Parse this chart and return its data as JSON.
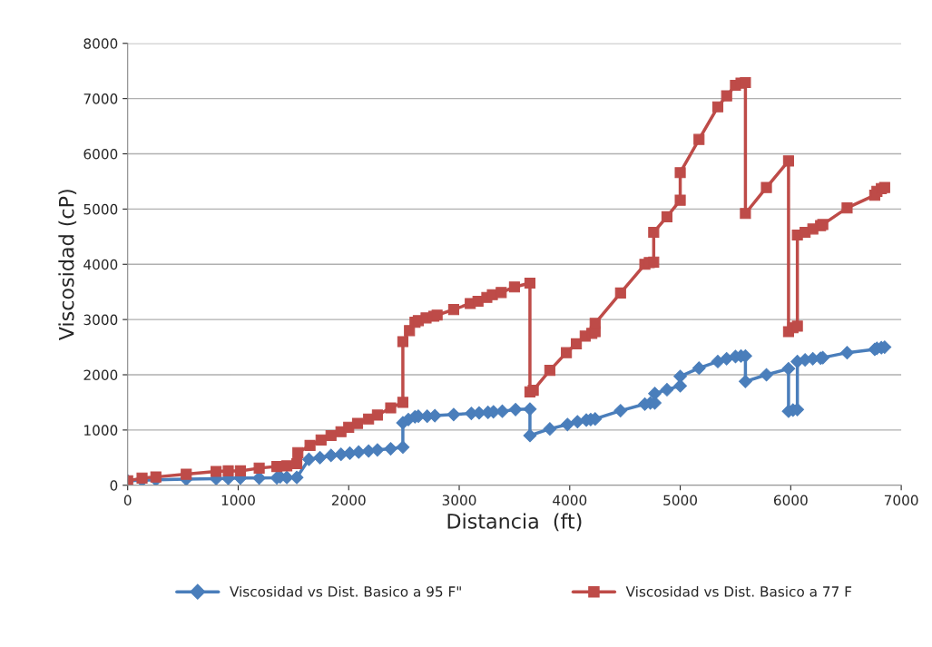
{
  "chart_data": {
    "type": "line",
    "xlabel": "Distancia  (ft)",
    "ylabel": "Viscosidad (cP)",
    "xlim": [
      0,
      7000
    ],
    "xticks": [
      0,
      1000,
      2000,
      3000,
      4000,
      5000,
      6000,
      7000
    ],
    "ylim": [
      0,
      8000
    ],
    "yticks": [
      0,
      1000,
      2000,
      3000,
      4000,
      5000,
      6000,
      7000,
      8000
    ],
    "grid": "y",
    "legend": "bottom",
    "line_style": "solid",
    "series": [
      {
        "name": "Viscosidad vs Dist. Basico a 95 F\"",
        "color": "#4a7ebb",
        "marker": "diamond",
        "x": [
          0,
          130,
          255,
          530,
          800,
          910,
          1020,
          1190,
          1350,
          1380,
          1440,
          1530,
          1640,
          1740,
          1840,
          1930,
          2010,
          2090,
          2180,
          2260,
          2380,
          2490,
          2490,
          2540,
          2600,
          2630,
          2710,
          2780,
          2950,
          3110,
          3180,
          3260,
          3310,
          3390,
          3510,
          3640,
          3640,
          3820,
          3980,
          4070,
          4150,
          4190,
          4230,
          4460,
          4680,
          4730,
          4770,
          4770,
          4880,
          5000,
          5000,
          5170,
          5340,
          5420,
          5500,
          5550,
          5590,
          5590,
          5780,
          5980,
          5980,
          6020,
          6060,
          6060,
          6130,
          6200,
          6270,
          6290,
          6510,
          6760,
          6780,
          6820,
          6850
        ],
        "values": [
          80,
          90,
          100,
          110,
          120,
          125,
          130,
          130,
          135,
          150,
          140,
          140,
          470,
          500,
          540,
          560,
          580,
          600,
          620,
          640,
          660,
          690,
          1130,
          1190,
          1240,
          1250,
          1250,
          1260,
          1280,
          1300,
          1310,
          1320,
          1330,
          1340,
          1370,
          1380,
          900,
          1020,
          1100,
          1150,
          1180,
          1190,
          1200,
          1350,
          1470,
          1490,
          1490,
          1660,
          1730,
          1800,
          1970,
          2120,
          2240,
          2290,
          2330,
          2340,
          2340,
          1880,
          2000,
          2110,
          1340,
          1360,
          1370,
          2240,
          2270,
          2290,
          2300,
          2310,
          2400,
          2460,
          2480,
          2490,
          2500
        ]
      },
      {
        "name": "Viscosidad vs Dist. Basico a 77 F",
        "color": "#be4b48",
        "marker": "square",
        "x": [
          0,
          130,
          255,
          530,
          800,
          910,
          1020,
          1190,
          1350,
          1440,
          1530,
          1540,
          1650,
          1750,
          1840,
          1930,
          2000,
          2080,
          2180,
          2260,
          2380,
          2490,
          2490,
          2550,
          2600,
          2630,
          2700,
          2770,
          2800,
          2950,
          3100,
          3170,
          3250,
          3300,
          3380,
          3500,
          3640,
          3640,
          3670,
          3820,
          3970,
          4060,
          4140,
          4200,
          4230,
          4230,
          4460,
          4680,
          4720,
          4760,
          4760,
          4880,
          5000,
          5000,
          5170,
          5340,
          5420,
          5500,
          5550,
          5590,
          5590,
          5780,
          5980,
          5980,
          6020,
          6060,
          6060,
          6130,
          6200,
          6270,
          6290,
          6510,
          6760,
          6780,
          6820,
          6850
        ],
        "values": [
          80,
          130,
          150,
          200,
          250,
          260,
          260,
          310,
          340,
          350,
          390,
          590,
          720,
          820,
          900,
          970,
          1050,
          1120,
          1200,
          1270,
          1400,
          1500,
          2600,
          2800,
          2950,
          2980,
          3030,
          3060,
          3080,
          3180,
          3290,
          3330,
          3400,
          3450,
          3490,
          3590,
          3660,
          1690,
          1720,
          2080,
          2400,
          2560,
          2700,
          2750,
          2780,
          2930,
          3480,
          4000,
          4030,
          4040,
          4580,
          4860,
          5160,
          5660,
          6260,
          6850,
          7050,
          7240,
          7280,
          7290,
          4920,
          5390,
          5870,
          2780,
          2850,
          2880,
          4530,
          4580,
          4640,
          4700,
          4720,
          5020,
          5250,
          5320,
          5370,
          5390
        ]
      }
    ]
  }
}
